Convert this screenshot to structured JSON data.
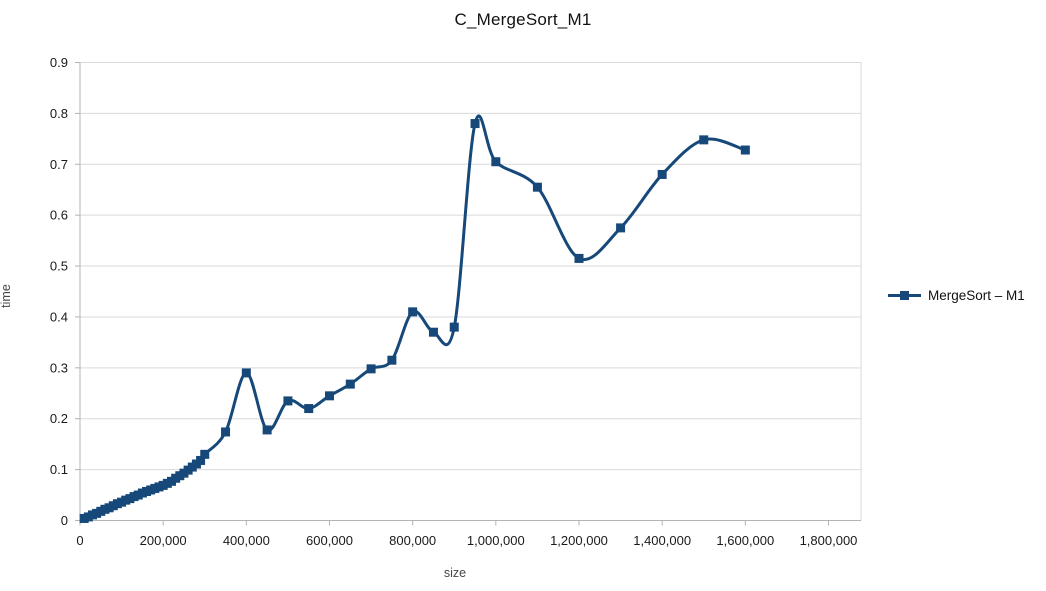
{
  "title": "C_MergeSort_M1",
  "legend": {
    "label": "MergeSort – M1",
    "marker": "filled-square"
  },
  "colors": {
    "series": "#16497a",
    "grid": "#d9d9d9",
    "axis": "#b3b3b3",
    "tick_text": "#1a1a1a",
    "axis_title_text": "#454545",
    "background": "#ffffff"
  },
  "chart_data": {
    "type": "line",
    "title": "C_MergeSort_M1",
    "xlabel": "size",
    "ylabel": "time",
    "legend_position": "right",
    "grid": "horizontal-only",
    "smooth": true,
    "marker": "square",
    "xlim": [
      0,
      1870000
    ],
    "ylim": [
      0,
      0.9
    ],
    "x_ticks": [
      0,
      200000,
      400000,
      600000,
      800000,
      1000000,
      1200000,
      1400000,
      1600000,
      1800000
    ],
    "x_tick_labels": [
      "0",
      "200,000",
      "400,000",
      "600,000",
      "800,000",
      "1,000,000",
      "1,200,000",
      "1,400,000",
      "1,600,000",
      "1,800,000"
    ],
    "y_ticks": [
      0,
      0.1,
      0.2,
      0.3,
      0.4,
      0.5,
      0.6,
      0.7,
      0.8,
      0.9
    ],
    "y_tick_labels": [
      "0",
      "0.1",
      "0.2",
      "0.3",
      "0.4",
      "0.5",
      "0.6",
      "0.7",
      "0.8",
      "0.9"
    ],
    "series": [
      {
        "name": "MergeSort – M1",
        "x": [
          10000,
          20000,
          30000,
          40000,
          50000,
          60000,
          70000,
          80000,
          90000,
          100000,
          110000,
          120000,
          130000,
          140000,
          150000,
          160000,
          170000,
          180000,
          190000,
          200000,
          210000,
          220000,
          230000,
          240000,
          250000,
          260000,
          270000,
          280000,
          290000,
          300000,
          350000,
          400000,
          450000,
          500000,
          550000,
          600000,
          650000,
          700000,
          750000,
          800000,
          850000,
          900000,
          950000,
          1000000,
          1100000,
          1200000,
          1300000,
          1400000,
          1500000,
          1600000
        ],
        "y": [
          0.004,
          0.007,
          0.011,
          0.014,
          0.018,
          0.022,
          0.025,
          0.029,
          0.033,
          0.036,
          0.04,
          0.043,
          0.047,
          0.05,
          0.054,
          0.057,
          0.06,
          0.063,
          0.066,
          0.069,
          0.073,
          0.077,
          0.083,
          0.088,
          0.093,
          0.099,
          0.105,
          0.111,
          0.118,
          0.13,
          0.174,
          0.29,
          0.178,
          0.235,
          0.22,
          0.245,
          0.268,
          0.298,
          0.315,
          0.41,
          0.37,
          0.38,
          0.78,
          0.705,
          0.655,
          0.515,
          0.575,
          0.68,
          0.748,
          0.728
        ]
      }
    ]
  }
}
